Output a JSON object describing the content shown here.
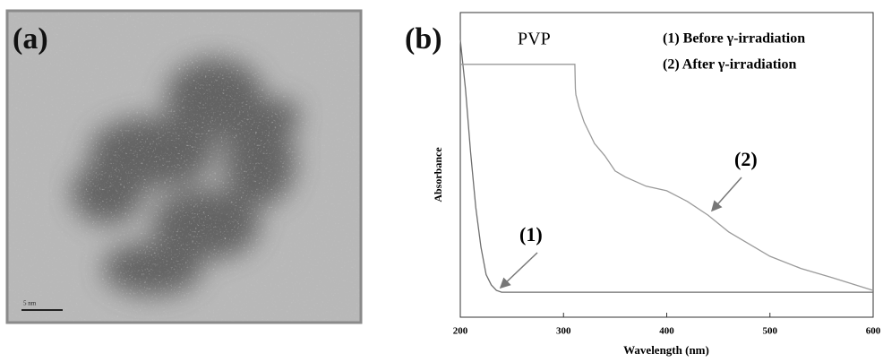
{
  "panel_a": {
    "label": "(a)",
    "scale_bar": "5 nm"
  },
  "chart_data": {
    "type": "line",
    "panel_label": "(b)",
    "xlabel": "Wavelength (nm)",
    "ylabel": "Absorbance",
    "xlim": [
      200,
      600
    ],
    "xticks": [
      200,
      300,
      400,
      500,
      600
    ],
    "ylim": [
      0,
      1
    ],
    "annotations": [
      "PVP",
      "(1)",
      "(2)"
    ],
    "series": [
      {
        "name": "(1) Before γ-irradiation",
        "color": "#6e6e6e",
        "x": [
          200,
          205,
          210,
          215,
          220,
          225,
          230,
          235,
          240,
          300,
          400,
          500,
          600
        ],
        "values": [
          0.91,
          0.75,
          0.54,
          0.36,
          0.23,
          0.14,
          0.106,
          0.088,
          0.082,
          0.082,
          0.082,
          0.082,
          0.082
        ]
      },
      {
        "name": "(2) After γ-irradiation",
        "color": "#9a9a9a",
        "x": [
          200,
          311,
          311.5,
          312,
          315,
          320,
          330,
          340,
          350,
          360,
          380,
          400,
          420,
          440,
          460,
          480,
          500,
          530,
          560,
          600
        ],
        "values": [
          0.83,
          0.83,
          0.75,
          0.73,
          0.69,
          0.64,
          0.57,
          0.53,
          0.48,
          0.46,
          0.43,
          0.415,
          0.38,
          0.335,
          0.28,
          0.24,
          0.2,
          0.16,
          0.13,
          0.088
        ]
      }
    ]
  }
}
